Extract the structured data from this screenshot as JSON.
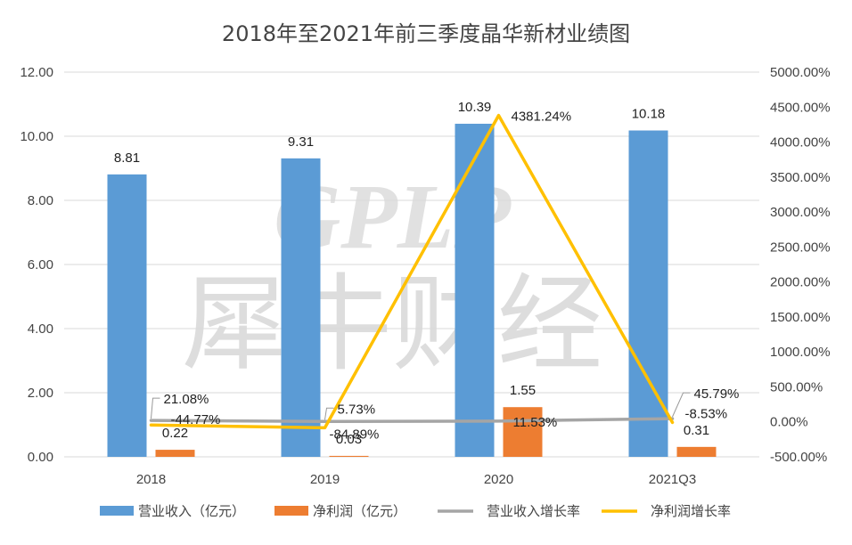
{
  "watermark": {
    "latin": "GPLP",
    "chinese": "犀牛财经"
  },
  "colors": {
    "revenue": "#5B9BD5",
    "profit": "#ED7D31",
    "revenue_growth": "#A5A5A5",
    "profit_growth": "#FFC000",
    "grid": "#D9D9D9",
    "text": "#444444"
  },
  "chart_data": {
    "type": "bar",
    "title": "2018年至2021年前三季度晶华新材业绩图",
    "categories": [
      "2018",
      "2019",
      "2020",
      "2021Q3"
    ],
    "y_left": {
      "min": 0,
      "max": 12,
      "ticks": [
        "0.00",
        "2.00",
        "4.00",
        "6.00",
        "8.00",
        "10.00",
        "12.00"
      ]
    },
    "y_right": {
      "min": -500,
      "max": 5000,
      "ticks": [
        "-500.00%",
        "0.00%",
        "500.00%",
        "1000.00%",
        "1500.00%",
        "2000.00%",
        "2500.00%",
        "3000.00%",
        "3500.00%",
        "4000.00%",
        "4500.00%",
        "5000.00%"
      ]
    },
    "grid": true,
    "legend_position": "bottom",
    "series": [
      {
        "name": "营业收入（亿元）",
        "type": "bar",
        "axis": "left",
        "values": [
          8.81,
          9.31,
          10.39,
          10.18
        ],
        "labels": [
          "8.81",
          "9.31",
          "10.39",
          "10.18"
        ]
      },
      {
        "name": "净利润（亿元）",
        "type": "bar",
        "axis": "left",
        "values": [
          0.22,
          0.03,
          1.55,
          0.31
        ],
        "labels": [
          "0.22",
          "0.03",
          "1.55",
          "0.31"
        ]
      },
      {
        "name": "营业收入增长率",
        "type": "line",
        "axis": "right",
        "values": [
          21.08,
          5.73,
          11.53,
          45.79
        ],
        "labels": [
          "21.08%",
          "5.73%",
          "11.53%",
          "45.79%"
        ]
      },
      {
        "name": "净利润增长率",
        "type": "line",
        "axis": "right",
        "values": [
          -44.77,
          -84.89,
          4381.24,
          -8.53
        ],
        "labels": [
          "-44.77%",
          "-84.89%",
          "4381.24%",
          "-8.53%"
        ]
      }
    ]
  }
}
